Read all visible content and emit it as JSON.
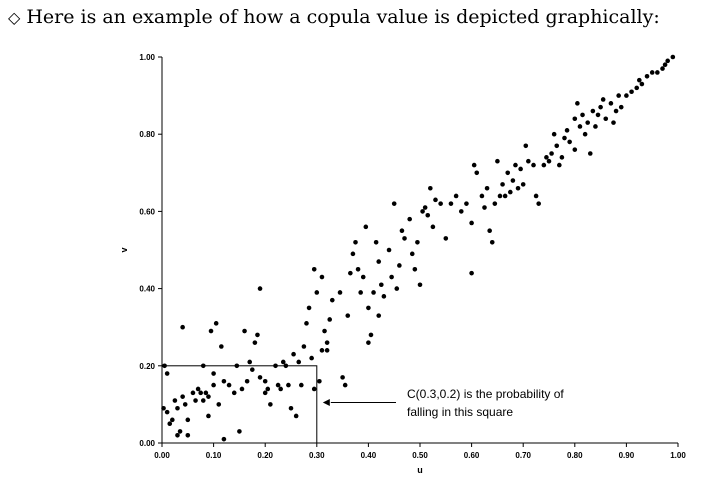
{
  "intro": {
    "bullet_symbol": "◇",
    "text": "Here is an example of how a copula value is depicted graphically:"
  },
  "chart_data": {
    "type": "scatter",
    "title": "",
    "xlabel": "u",
    "ylabel": "v",
    "xlim": [
      0,
      1
    ],
    "ylim": [
      0,
      1
    ],
    "x_ticks": [
      "0.00",
      "0.10",
      "0.20",
      "0.30",
      "0.40",
      "0.50",
      "0.60",
      "0.70",
      "0.80",
      "0.90",
      "1.00"
    ],
    "y_ticks": [
      "0.00",
      "0.20",
      "0.40",
      "0.60",
      "0.80",
      "1.00"
    ],
    "grid": false,
    "point_color": "#000000",
    "rectangle": {
      "u": 0.3,
      "v": 0.2
    },
    "annotation": {
      "lines": [
        "C(0.3,0.2) is the probability of",
        "falling in this square"
      ],
      "points_to": [
        0.3,
        0.105
      ]
    },
    "points": [
      [
        0.003,
        0.09
      ],
      [
        0.005,
        0.2
      ],
      [
        0.01,
        0.18
      ],
      [
        0.01,
        0.08
      ],
      [
        0.015,
        0.05
      ],
      [
        0.02,
        0.06
      ],
      [
        0.025,
        0.11
      ],
      [
        0.03,
        0.09
      ],
      [
        0.03,
        0.02
      ],
      [
        0.035,
        0.03
      ],
      [
        0.04,
        0.12
      ],
      [
        0.04,
        0.3
      ],
      [
        0.045,
        0.1
      ],
      [
        0.05,
        0.06
      ],
      [
        0.05,
        0.02
      ],
      [
        0.06,
        0.13
      ],
      [
        0.065,
        0.11
      ],
      [
        0.07,
        0.14
      ],
      [
        0.075,
        0.13
      ],
      [
        0.08,
        0.2
      ],
      [
        0.08,
        0.11
      ],
      [
        0.085,
        0.13
      ],
      [
        0.09,
        0.12
      ],
      [
        0.09,
        0.07
      ],
      [
        0.095,
        0.29
      ],
      [
        0.1,
        0.18
      ],
      [
        0.1,
        0.15
      ],
      [
        0.105,
        0.31
      ],
      [
        0.11,
        0.1
      ],
      [
        0.115,
        0.25
      ],
      [
        0.12,
        0.01
      ],
      [
        0.12,
        0.16
      ],
      [
        0.13,
        0.15
      ],
      [
        0.14,
        0.13
      ],
      [
        0.145,
        0.2
      ],
      [
        0.15,
        0.03
      ],
      [
        0.155,
        0.14
      ],
      [
        0.16,
        0.29
      ],
      [
        0.165,
        0.16
      ],
      [
        0.17,
        0.21
      ],
      [
        0.175,
        0.19
      ],
      [
        0.18,
        0.26
      ],
      [
        0.185,
        0.28
      ],
      [
        0.19,
        0.4
      ],
      [
        0.19,
        0.17
      ],
      [
        0.2,
        0.16
      ],
      [
        0.2,
        0.13
      ],
      [
        0.205,
        0.14
      ],
      [
        0.21,
        0.1
      ],
      [
        0.22,
        0.2
      ],
      [
        0.225,
        0.15
      ],
      [
        0.23,
        0.14
      ],
      [
        0.235,
        0.21
      ],
      [
        0.24,
        0.2
      ],
      [
        0.245,
        0.15
      ],
      [
        0.25,
        0.09
      ],
      [
        0.255,
        0.23
      ],
      [
        0.26,
        0.07
      ],
      [
        0.265,
        0.21
      ],
      [
        0.27,
        0.15
      ],
      [
        0.275,
        0.25
      ],
      [
        0.28,
        0.31
      ],
      [
        0.285,
        0.35
      ],
      [
        0.29,
        0.22
      ],
      [
        0.295,
        0.14
      ],
      [
        0.295,
        0.45
      ],
      [
        0.3,
        0.39
      ],
      [
        0.305,
        0.16
      ],
      [
        0.31,
        0.24
      ],
      [
        0.31,
        0.43
      ],
      [
        0.315,
        0.29
      ],
      [
        0.32,
        0.26
      ],
      [
        0.32,
        0.24
      ],
      [
        0.325,
        0.32
      ],
      [
        0.33,
        0.37
      ],
      [
        0.345,
        0.39
      ],
      [
        0.35,
        0.17
      ],
      [
        0.355,
        0.15
      ],
      [
        0.36,
        0.33
      ],
      [
        0.365,
        0.44
      ],
      [
        0.37,
        0.49
      ],
      [
        0.375,
        0.52
      ],
      [
        0.38,
        0.45
      ],
      [
        0.385,
        0.39
      ],
      [
        0.39,
        0.43
      ],
      [
        0.395,
        0.56
      ],
      [
        0.4,
        0.35
      ],
      [
        0.4,
        0.26
      ],
      [
        0.405,
        0.28
      ],
      [
        0.41,
        0.39
      ],
      [
        0.415,
        0.52
      ],
      [
        0.42,
        0.47
      ],
      [
        0.42,
        0.33
      ],
      [
        0.425,
        0.41
      ],
      [
        0.43,
        0.38
      ],
      [
        0.44,
        0.5
      ],
      [
        0.445,
        0.43
      ],
      [
        0.45,
        0.62
      ],
      [
        0.455,
        0.4
      ],
      [
        0.46,
        0.46
      ],
      [
        0.465,
        0.55
      ],
      [
        0.47,
        0.53
      ],
      [
        0.48,
        0.58
      ],
      [
        0.485,
        0.49
      ],
      [
        0.49,
        0.45
      ],
      [
        0.495,
        0.52
      ],
      [
        0.5,
        0.41
      ],
      [
        0.505,
        0.6
      ],
      [
        0.51,
        0.61
      ],
      [
        0.515,
        0.59
      ],
      [
        0.52,
        0.66
      ],
      [
        0.525,
        0.56
      ],
      [
        0.53,
        0.63
      ],
      [
        0.54,
        0.62
      ],
      [
        0.55,
        0.53
      ],
      [
        0.56,
        0.62
      ],
      [
        0.57,
        0.64
      ],
      [
        0.58,
        0.6
      ],
      [
        0.59,
        0.62
      ],
      [
        0.6,
        0.44
      ],
      [
        0.6,
        0.57
      ],
      [
        0.605,
        0.72
      ],
      [
        0.61,
        0.7
      ],
      [
        0.62,
        0.64
      ],
      [
        0.625,
        0.61
      ],
      [
        0.63,
        0.66
      ],
      [
        0.635,
        0.55
      ],
      [
        0.64,
        0.52
      ],
      [
        0.645,
        0.62
      ],
      [
        0.65,
        0.73
      ],
      [
        0.655,
        0.64
      ],
      [
        0.66,
        0.67
      ],
      [
        0.665,
        0.64
      ],
      [
        0.67,
        0.7
      ],
      [
        0.675,
        0.65
      ],
      [
        0.68,
        0.68
      ],
      [
        0.685,
        0.72
      ],
      [
        0.69,
        0.66
      ],
      [
        0.695,
        0.71
      ],
      [
        0.7,
        0.67
      ],
      [
        0.705,
        0.77
      ],
      [
        0.71,
        0.73
      ],
      [
        0.72,
        0.72
      ],
      [
        0.725,
        0.64
      ],
      [
        0.73,
        0.62
      ],
      [
        0.74,
        0.72
      ],
      [
        0.745,
        0.74
      ],
      [
        0.75,
        0.73
      ],
      [
        0.755,
        0.75
      ],
      [
        0.76,
        0.8
      ],
      [
        0.765,
        0.77
      ],
      [
        0.77,
        0.72
      ],
      [
        0.775,
        0.74
      ],
      [
        0.78,
        0.79
      ],
      [
        0.785,
        0.81
      ],
      [
        0.79,
        0.78
      ],
      [
        0.8,
        0.84
      ],
      [
        0.8,
        0.76
      ],
      [
        0.805,
        0.88
      ],
      [
        0.81,
        0.82
      ],
      [
        0.815,
        0.85
      ],
      [
        0.82,
        0.8
      ],
      [
        0.825,
        0.83
      ],
      [
        0.83,
        0.75
      ],
      [
        0.835,
        0.86
      ],
      [
        0.84,
        0.82
      ],
      [
        0.845,
        0.85
      ],
      [
        0.85,
        0.87
      ],
      [
        0.855,
        0.89
      ],
      [
        0.86,
        0.84
      ],
      [
        0.87,
        0.88
      ],
      [
        0.875,
        0.83
      ],
      [
        0.88,
        0.86
      ],
      [
        0.885,
        0.9
      ],
      [
        0.89,
        0.87
      ],
      [
        0.9,
        0.9
      ],
      [
        0.91,
        0.91
      ],
      [
        0.92,
        0.92
      ],
      [
        0.925,
        0.94
      ],
      [
        0.93,
        0.93
      ],
      [
        0.94,
        0.95
      ],
      [
        0.95,
        0.96
      ],
      [
        0.96,
        0.96
      ],
      [
        0.97,
        0.97
      ],
      [
        0.975,
        0.98
      ],
      [
        0.98,
        0.99
      ],
      [
        0.99,
        1.0
      ]
    ]
  }
}
